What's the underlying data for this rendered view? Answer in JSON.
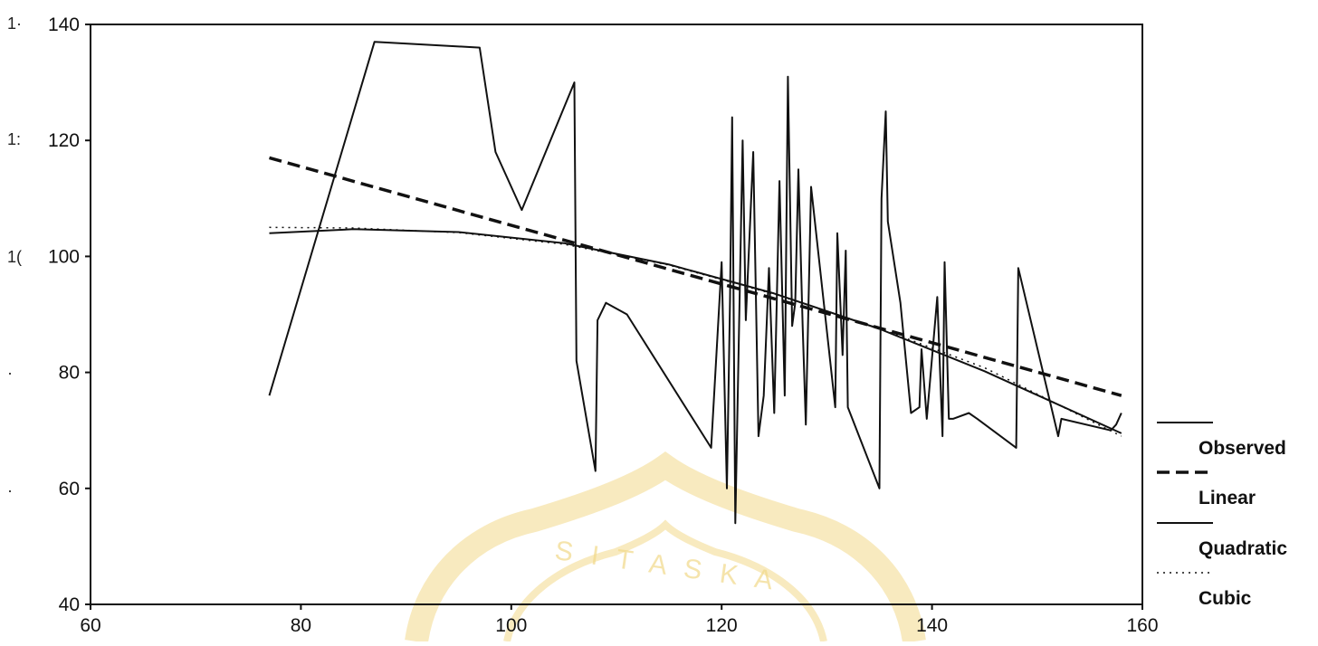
{
  "colors": {
    "line": "#111111",
    "background": "#ffffff",
    "watermark": "#f2d98a"
  },
  "left_edge_fragments": [
    "1·",
    "1:",
    "1(",
    "·",
    "·"
  ],
  "watermark": {
    "text": "S I T A S   K A"
  },
  "chart_data": {
    "type": "line",
    "title": "",
    "xlabel": "",
    "ylabel": "",
    "xlim": [
      60,
      160
    ],
    "ylim": [
      40,
      140
    ],
    "x_ticks": [
      60,
      80,
      100,
      120,
      140,
      160
    ],
    "y_ticks": [
      40,
      60,
      80,
      100,
      120,
      140
    ],
    "grid": false,
    "legend_position": "right",
    "series": [
      {
        "name": "Observed",
        "style": "solid-thin",
        "x": [
          77,
          87,
          97,
          98.5,
          101,
          106,
          106.2,
          108,
          108.2,
          109,
          111,
          119,
          120,
          120.5,
          120.8,
          121,
          121.3,
          122,
          122.3,
          123,
          123.5,
          124,
          124.5,
          125,
          125.5,
          126,
          126.3,
          126.7,
          127,
          127.3,
          127.7,
          128,
          128.5,
          130.8,
          131,
          131.5,
          131.8,
          132,
          135,
          135.2,
          135.6,
          135.8,
          137,
          138,
          138.8,
          139,
          139.5,
          140.5,
          141,
          141.2,
          141.6,
          142,
          143.5,
          144.3,
          148,
          148.2,
          152,
          152.3,
          157,
          157.5,
          158
        ],
        "y": [
          76,
          137,
          136,
          118,
          108,
          130,
          82,
          63,
          89,
          92,
          90,
          67,
          99,
          60,
          93,
          124,
          54,
          120,
          89,
          118,
          69,
          76,
          98,
          73,
          113,
          76,
          131,
          88,
          92,
          115,
          88,
          71,
          112,
          74,
          104,
          83,
          101,
          74,
          60,
          110,
          125,
          106,
          92,
          73,
          74,
          84,
          72,
          93,
          69,
          99,
          72,
          72,
          73,
          72,
          67,
          98,
          69,
          72,
          70,
          71,
          73
        ]
      },
      {
        "name": "Linear",
        "style": "dashed-thick",
        "x": [
          77,
          158
        ],
        "y": [
          117,
          76
        ]
      },
      {
        "name": "Quadratic",
        "style": "solid-medium",
        "x": [
          77,
          85,
          95,
          105,
          115,
          125,
          135,
          145,
          158
        ],
        "y": [
          104,
          104.7,
          104.2,
          102.3,
          98.6,
          93.6,
          87.5,
          80.2,
          69.5
        ]
      },
      {
        "name": "Cubic",
        "style": "dotted",
        "x": [
          77,
          85,
          95,
          105,
          115,
          125,
          135,
          145,
          158
        ],
        "y": [
          105,
          104.9,
          104.1,
          102.1,
          98.5,
          93.5,
          87.6,
          80.8,
          69
        ]
      }
    ]
  }
}
